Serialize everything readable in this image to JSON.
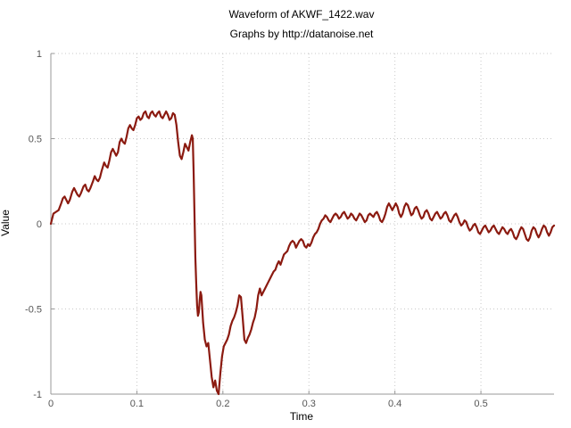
{
  "chart_data": {
    "type": "line",
    "title": "Waveform of AKWF_1422.wav",
    "subtitle": "Graphs by http://datanoise.net",
    "xlabel": "Time",
    "ylabel": "Value",
    "xlim": [
      0,
      0.585
    ],
    "ylim": [
      -1,
      1
    ],
    "x_ticks": [
      0,
      0.1,
      0.2,
      0.3,
      0.4,
      0.5
    ],
    "x_tick_labels": [
      "0",
      "0.1",
      "0.2",
      "0.3",
      "0.4",
      "0.5"
    ],
    "y_ticks": [
      -1,
      -0.5,
      0,
      0.5,
      1
    ],
    "y_tick_labels": [
      "-1",
      "-0.5",
      "0",
      "0.5",
      "1"
    ],
    "grid": true,
    "legend": "none",
    "series": [
      {
        "color": "#8b1a10",
        "points": [
          [
            0.0,
            0.0
          ],
          [
            0.003,
            0.06
          ],
          [
            0.006,
            0.07
          ],
          [
            0.009,
            0.08
          ],
          [
            0.012,
            0.12
          ],
          [
            0.014,
            0.15
          ],
          [
            0.016,
            0.16
          ],
          [
            0.018,
            0.14
          ],
          [
            0.02,
            0.12
          ],
          [
            0.022,
            0.14
          ],
          [
            0.025,
            0.19
          ],
          [
            0.027,
            0.21
          ],
          [
            0.029,
            0.19
          ],
          [
            0.031,
            0.17
          ],
          [
            0.033,
            0.16
          ],
          [
            0.035,
            0.18
          ],
          [
            0.038,
            0.22
          ],
          [
            0.04,
            0.23
          ],
          [
            0.042,
            0.2
          ],
          [
            0.044,
            0.19
          ],
          [
            0.046,
            0.21
          ],
          [
            0.049,
            0.25
          ],
          [
            0.051,
            0.28
          ],
          [
            0.053,
            0.26
          ],
          [
            0.055,
            0.25
          ],
          [
            0.057,
            0.27
          ],
          [
            0.059,
            0.31
          ],
          [
            0.062,
            0.36
          ],
          [
            0.064,
            0.34
          ],
          [
            0.066,
            0.33
          ],
          [
            0.068,
            0.37
          ],
          [
            0.07,
            0.42
          ],
          [
            0.072,
            0.44
          ],
          [
            0.074,
            0.42
          ],
          [
            0.076,
            0.4
          ],
          [
            0.078,
            0.42
          ],
          [
            0.08,
            0.48
          ],
          [
            0.082,
            0.5
          ],
          [
            0.084,
            0.48
          ],
          [
            0.086,
            0.47
          ],
          [
            0.088,
            0.51
          ],
          [
            0.09,
            0.56
          ],
          [
            0.092,
            0.58
          ],
          [
            0.094,
            0.56
          ],
          [
            0.096,
            0.55
          ],
          [
            0.098,
            0.58
          ],
          [
            0.1,
            0.62
          ],
          [
            0.102,
            0.63
          ],
          [
            0.104,
            0.61
          ],
          [
            0.106,
            0.62
          ],
          [
            0.108,
            0.65
          ],
          [
            0.11,
            0.66
          ],
          [
            0.112,
            0.63
          ],
          [
            0.114,
            0.62
          ],
          [
            0.116,
            0.65
          ],
          [
            0.118,
            0.66
          ],
          [
            0.12,
            0.64
          ],
          [
            0.122,
            0.63
          ],
          [
            0.124,
            0.65
          ],
          [
            0.126,
            0.66
          ],
          [
            0.128,
            0.63
          ],
          [
            0.13,
            0.62
          ],
          [
            0.132,
            0.64
          ],
          [
            0.134,
            0.66
          ],
          [
            0.136,
            0.64
          ],
          [
            0.138,
            0.61
          ],
          [
            0.14,
            0.62
          ],
          [
            0.142,
            0.65
          ],
          [
            0.144,
            0.64
          ],
          [
            0.146,
            0.58
          ],
          [
            0.148,
            0.48
          ],
          [
            0.15,
            0.4
          ],
          [
            0.152,
            0.38
          ],
          [
            0.154,
            0.42
          ],
          [
            0.156,
            0.47
          ],
          [
            0.158,
            0.45
          ],
          [
            0.16,
            0.43
          ],
          [
            0.162,
            0.48
          ],
          [
            0.164,
            0.52
          ],
          [
            0.165,
            0.5
          ],
          [
            0.166,
            0.3
          ],
          [
            0.167,
            0.05
          ],
          [
            0.168,
            -0.2
          ],
          [
            0.169,
            -0.35
          ],
          [
            0.17,
            -0.48
          ],
          [
            0.171,
            -0.54
          ],
          [
            0.172,
            -0.52
          ],
          [
            0.173,
            -0.45
          ],
          [
            0.174,
            -0.4
          ],
          [
            0.175,
            -0.42
          ],
          [
            0.176,
            -0.5
          ],
          [
            0.177,
            -0.58
          ],
          [
            0.179,
            -0.68
          ],
          [
            0.181,
            -0.72
          ],
          [
            0.183,
            -0.7
          ],
          [
            0.185,
            -0.8
          ],
          [
            0.187,
            -0.9
          ],
          [
            0.189,
            -0.96
          ],
          [
            0.191,
            -0.92
          ],
          [
            0.193,
            -0.98
          ],
          [
            0.195,
            -1.0
          ],
          [
            0.197,
            -0.88
          ],
          [
            0.199,
            -0.78
          ],
          [
            0.201,
            -0.72
          ],
          [
            0.203,
            -0.7
          ],
          [
            0.205,
            -0.68
          ],
          [
            0.207,
            -0.65
          ],
          [
            0.209,
            -0.6
          ],
          [
            0.211,
            -0.57
          ],
          [
            0.213,
            -0.55
          ],
          [
            0.215,
            -0.52
          ],
          [
            0.217,
            -0.48
          ],
          [
            0.219,
            -0.42
          ],
          [
            0.221,
            -0.43
          ],
          [
            0.223,
            -0.55
          ],
          [
            0.225,
            -0.68
          ],
          [
            0.227,
            -0.7
          ],
          [
            0.229,
            -0.67
          ],
          [
            0.231,
            -0.65
          ],
          [
            0.233,
            -0.62
          ],
          [
            0.235,
            -0.58
          ],
          [
            0.237,
            -0.55
          ],
          [
            0.239,
            -0.5
          ],
          [
            0.241,
            -0.42
          ],
          [
            0.243,
            -0.38
          ],
          [
            0.245,
            -0.42
          ],
          [
            0.247,
            -0.4
          ],
          [
            0.249,
            -0.38
          ],
          [
            0.251,
            -0.36
          ],
          [
            0.253,
            -0.34
          ],
          [
            0.255,
            -0.32
          ],
          [
            0.257,
            -0.3
          ],
          [
            0.259,
            -0.28
          ],
          [
            0.261,
            -0.27
          ],
          [
            0.263,
            -0.24
          ],
          [
            0.265,
            -0.22
          ],
          [
            0.267,
            -0.24
          ],
          [
            0.269,
            -0.21
          ],
          [
            0.271,
            -0.18
          ],
          [
            0.273,
            -0.17
          ],
          [
            0.275,
            -0.16
          ],
          [
            0.277,
            -0.13
          ],
          [
            0.279,
            -0.11
          ],
          [
            0.281,
            -0.1
          ],
          [
            0.283,
            -0.11
          ],
          [
            0.285,
            -0.14
          ],
          [
            0.287,
            -0.12
          ],
          [
            0.289,
            -0.1
          ],
          [
            0.291,
            -0.09
          ],
          [
            0.293,
            -0.1
          ],
          [
            0.295,
            -0.13
          ],
          [
            0.297,
            -0.14
          ],
          [
            0.299,
            -0.12
          ],
          [
            0.301,
            -0.13
          ],
          [
            0.303,
            -0.11
          ],
          [
            0.305,
            -0.08
          ],
          [
            0.307,
            -0.06
          ],
          [
            0.309,
            -0.05
          ],
          [
            0.311,
            -0.03
          ],
          [
            0.313,
            0.0
          ],
          [
            0.315,
            0.02
          ],
          [
            0.317,
            0.03
          ],
          [
            0.319,
            0.05
          ],
          [
            0.321,
            0.04
          ],
          [
            0.323,
            0.02
          ],
          [
            0.325,
            0.01
          ],
          [
            0.327,
            0.03
          ],
          [
            0.329,
            0.05
          ],
          [
            0.331,
            0.06
          ],
          [
            0.333,
            0.05
          ],
          [
            0.335,
            0.03
          ],
          [
            0.337,
            0.04
          ],
          [
            0.339,
            0.06
          ],
          [
            0.341,
            0.07
          ],
          [
            0.343,
            0.05
          ],
          [
            0.345,
            0.03
          ],
          [
            0.347,
            0.04
          ],
          [
            0.349,
            0.06
          ],
          [
            0.351,
            0.05
          ],
          [
            0.353,
            0.03
          ],
          [
            0.355,
            0.02
          ],
          [
            0.357,
            0.04
          ],
          [
            0.359,
            0.06
          ],
          [
            0.361,
            0.05
          ],
          [
            0.363,
            0.03
          ],
          [
            0.365,
            0.01
          ],
          [
            0.367,
            0.02
          ],
          [
            0.369,
            0.05
          ],
          [
            0.371,
            0.06
          ],
          [
            0.373,
            0.05
          ],
          [
            0.375,
            0.04
          ],
          [
            0.377,
            0.06
          ],
          [
            0.379,
            0.07
          ],
          [
            0.381,
            0.05
          ],
          [
            0.383,
            0.02
          ],
          [
            0.385,
            0.01
          ],
          [
            0.387,
            0.03
          ],
          [
            0.389,
            0.06
          ],
          [
            0.391,
            0.1
          ],
          [
            0.393,
            0.12
          ],
          [
            0.395,
            0.1
          ],
          [
            0.397,
            0.08
          ],
          [
            0.399,
            0.1
          ],
          [
            0.401,
            0.12
          ],
          [
            0.403,
            0.1
          ],
          [
            0.405,
            0.06
          ],
          [
            0.407,
            0.04
          ],
          [
            0.409,
            0.06
          ],
          [
            0.411,
            0.1
          ],
          [
            0.413,
            0.12
          ],
          [
            0.415,
            0.11
          ],
          [
            0.417,
            0.08
          ],
          [
            0.419,
            0.05
          ],
          [
            0.421,
            0.06
          ],
          [
            0.423,
            0.09
          ],
          [
            0.425,
            0.1
          ],
          [
            0.427,
            0.08
          ],
          [
            0.429,
            0.05
          ],
          [
            0.431,
            0.03
          ],
          [
            0.433,
            0.04
          ],
          [
            0.435,
            0.07
          ],
          [
            0.437,
            0.08
          ],
          [
            0.439,
            0.06
          ],
          [
            0.441,
            0.03
          ],
          [
            0.443,
            0.02
          ],
          [
            0.445,
            0.04
          ],
          [
            0.447,
            0.06
          ],
          [
            0.449,
            0.07
          ],
          [
            0.451,
            0.05
          ],
          [
            0.453,
            0.03
          ],
          [
            0.455,
            0.04
          ],
          [
            0.457,
            0.06
          ],
          [
            0.459,
            0.07
          ],
          [
            0.461,
            0.05
          ],
          [
            0.463,
            0.02
          ],
          [
            0.465,
            0.01
          ],
          [
            0.467,
            0.03
          ],
          [
            0.469,
            0.05
          ],
          [
            0.471,
            0.06
          ],
          [
            0.473,
            0.04
          ],
          [
            0.475,
            0.01
          ],
          [
            0.477,
            -0.01
          ],
          [
            0.479,
            0.0
          ],
          [
            0.481,
            0.02
          ],
          [
            0.483,
            0.01
          ],
          [
            0.485,
            -0.02
          ],
          [
            0.487,
            -0.04
          ],
          [
            0.489,
            -0.03
          ],
          [
            0.491,
            -0.01
          ],
          [
            0.493,
            0.0
          ],
          [
            0.495,
            -0.02
          ],
          [
            0.497,
            -0.05
          ],
          [
            0.499,
            -0.06
          ],
          [
            0.501,
            -0.04
          ],
          [
            0.503,
            -0.02
          ],
          [
            0.505,
            -0.01
          ],
          [
            0.507,
            -0.03
          ],
          [
            0.509,
            -0.05
          ],
          [
            0.511,
            -0.04
          ],
          [
            0.513,
            -0.02
          ],
          [
            0.515,
            -0.01
          ],
          [
            0.517,
            -0.03
          ],
          [
            0.519,
            -0.05
          ],
          [
            0.521,
            -0.06
          ],
          [
            0.523,
            -0.04
          ],
          [
            0.525,
            -0.02
          ],
          [
            0.527,
            -0.03
          ],
          [
            0.529,
            -0.05
          ],
          [
            0.531,
            -0.06
          ],
          [
            0.533,
            -0.04
          ],
          [
            0.535,
            -0.03
          ],
          [
            0.537,
            -0.05
          ],
          [
            0.539,
            -0.08
          ],
          [
            0.541,
            -0.09
          ],
          [
            0.543,
            -0.07
          ],
          [
            0.545,
            -0.04
          ],
          [
            0.547,
            -0.02
          ],
          [
            0.549,
            -0.03
          ],
          [
            0.551,
            -0.06
          ],
          [
            0.553,
            -0.09
          ],
          [
            0.555,
            -0.1
          ],
          [
            0.557,
            -0.08
          ],
          [
            0.559,
            -0.04
          ],
          [
            0.561,
            -0.02
          ],
          [
            0.563,
            -0.03
          ],
          [
            0.565,
            -0.06
          ],
          [
            0.567,
            -0.08
          ],
          [
            0.569,
            -0.06
          ],
          [
            0.571,
            -0.03
          ],
          [
            0.573,
            -0.01
          ],
          [
            0.575,
            -0.02
          ],
          [
            0.577,
            -0.05
          ],
          [
            0.579,
            -0.07
          ],
          [
            0.581,
            -0.05
          ],
          [
            0.583,
            -0.02
          ],
          [
            0.585,
            -0.01
          ]
        ]
      }
    ]
  }
}
